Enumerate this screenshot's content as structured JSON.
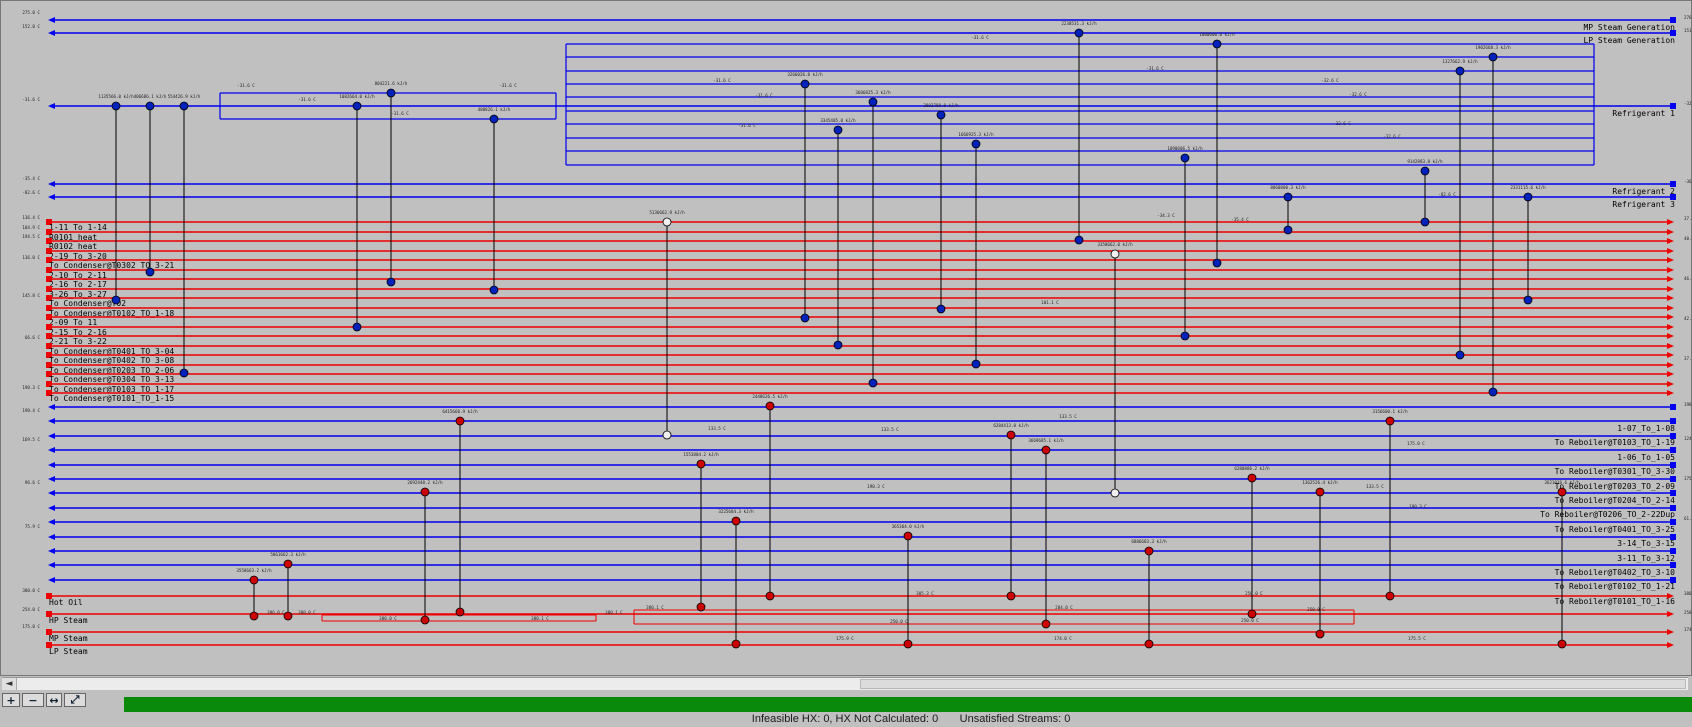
{
  "utility_streams": [
    {
      "name": "MP Steam Generation",
      "side": "right",
      "color": "blue"
    },
    {
      "name": "LP Steam Generation",
      "side": "right",
      "color": "blue"
    },
    {
      "name": "Refrigerant 1",
      "side": "right",
      "color": "blue"
    },
    {
      "name": "Refrigerant 2",
      "side": "right",
      "color": "blue"
    },
    {
      "name": "Refrigerant 3",
      "side": "right",
      "color": "blue"
    }
  ],
  "hot_streams": [
    "1-11_To_1-14",
    "R0101_heat",
    "R0102_heat",
    "2-19_To_3-20",
    "To Condenser@T0302_TO_3-21",
    "2-10_To_2-11",
    "2-16_To_2-17",
    "3-26_To_3-27",
    "To Condenser@T02",
    "To Condenser@T0102_TO_1-18",
    "2-09_To_11",
    "2-15_To_2-16",
    "2-21_To_3-22",
    "To Condenser@T0401_TO_3-04",
    "To Condenser@T0402_TO_3-08",
    "To Condenser@T0203_TO_2-06",
    "To Condenser@T0304_TO_3-13",
    "To Condenser@T0103_TO_1-17",
    "To Condenser@T0101_TO_1-15"
  ],
  "cold_streams": [
    "1-07_To_1-08",
    "To Reboiler@T0103_TO_1-19",
    "1-06_To_1-05",
    "To Reboiler@T0301_TO_3-30",
    "To Reboiler@T0203_TO_2-09",
    "To Reboiler@T0204_TO_2-14",
    "To Reboiler@T0206_TO_2-22Dup",
    "To Reboiler@T0401_TO_3-25",
    "3-14_To_3-15",
    "3-11_To_3-12",
    "To Reboiler@T0402_TO_3-10",
    "To Reboiler@T0102_TO_1-21",
    "To Reboiler@T0101_TO_1-16"
  ],
  "utility_hot": [
    "Hot Oil",
    "HP Steam",
    "MP Steam",
    "LP Steam"
  ],
  "toolbar": [
    {
      "name": "zoom-in-icon",
      "glyph": "+"
    },
    {
      "name": "zoom-out-icon",
      "glyph": "−"
    },
    {
      "name": "fit-width-icon",
      "glyph": "↔"
    },
    {
      "name": "fit-all-icon",
      "glyph": "⤢"
    }
  ],
  "status": {
    "text": "Infeasible HX: 0, HX Not Calculated: 0       Unsatisfied Streams: 0"
  },
  "scrollbar": {
    "left_arrow": "◄"
  }
}
